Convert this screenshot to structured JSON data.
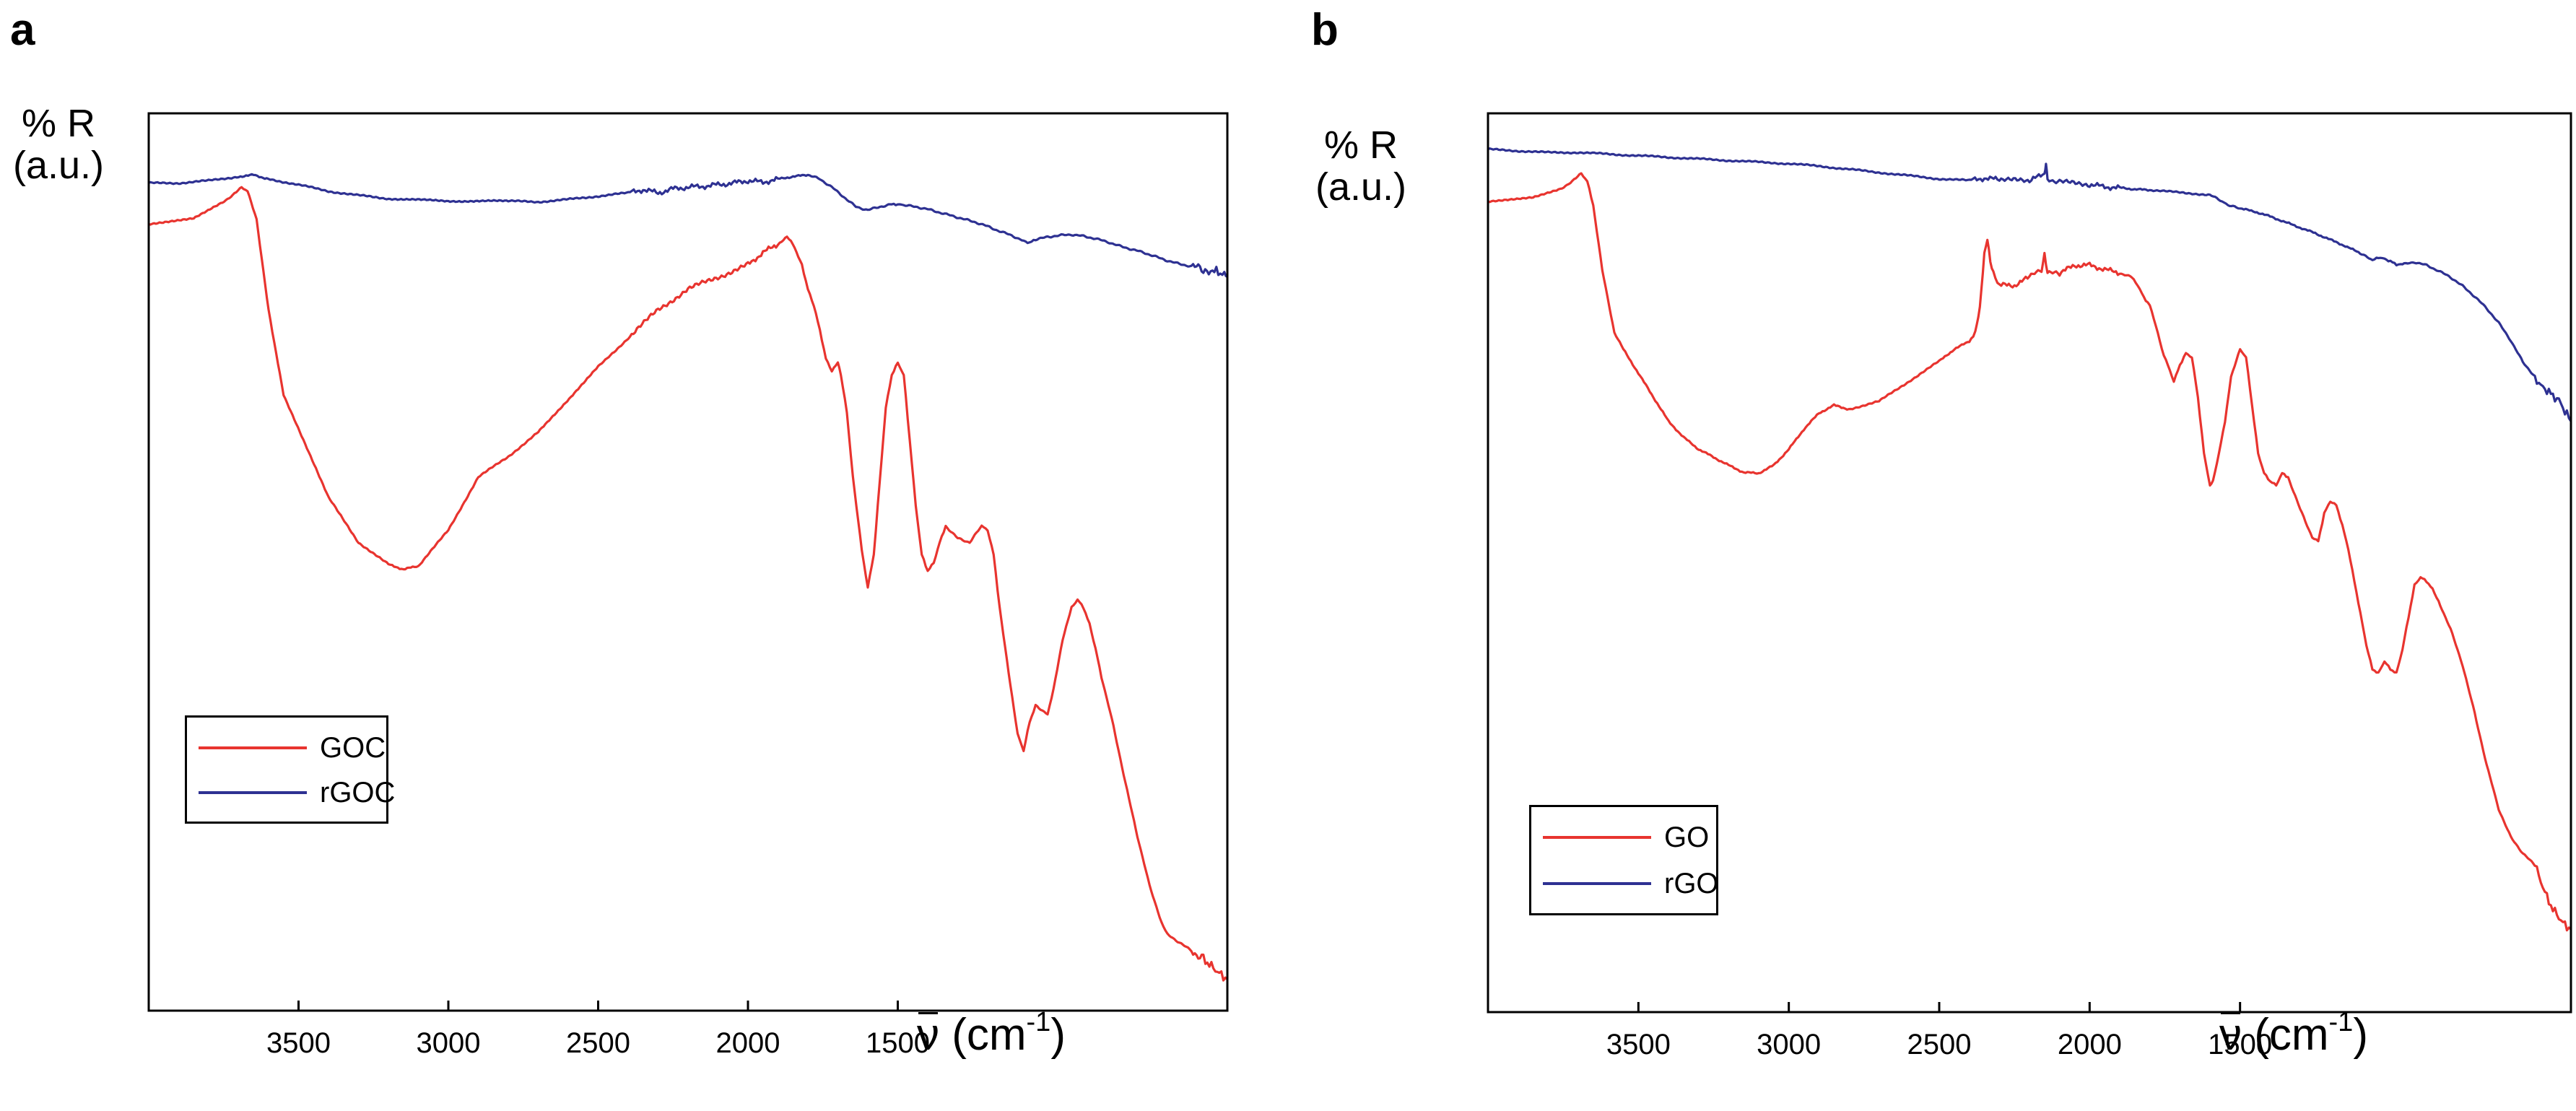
{
  "panels": [
    {
      "letter": "a",
      "ylabel_line1": "% R",
      "ylabel_line2": "(a.u.)",
      "xlabel_symbol": "ν",
      "xlabel_unit_open": " (cm",
      "xlabel_exp": "-1",
      "xlabel_close": ")",
      "legend": [
        {
          "label": "GOC",
          "color": "#e8342f"
        },
        {
          "label": "rGOC",
          "color": "#2e3192"
        }
      ]
    },
    {
      "letter": "b",
      "ylabel_line1": "% R",
      "ylabel_line2": "(a.u.)",
      "xlabel_symbol": "ν",
      "xlabel_unit_open": " (cm",
      "xlabel_exp": "-1",
      "xlabel_close": ")",
      "legend": [
        {
          "label": "GO",
          "color": "#e8342f"
        },
        {
          "label": "rGO",
          "color": "#2e3192"
        }
      ]
    }
  ],
  "chart_data": [
    {
      "type": "line",
      "title": "a",
      "xlabel": "ν (cm-1)",
      "ylabel": "% R (a.u.)",
      "xlim": [
        4000,
        400
      ],
      "ylim": [
        0,
        100
      ],
      "xticks": [
        3500,
        3000,
        2500,
        2000,
        1500
      ],
      "series": [
        {
          "name": "GOC",
          "color": "#e8342f",
          "x": [
            4000,
            3850,
            3760,
            3720,
            3690,
            3670,
            3640,
            3600,
            3550,
            3400,
            3300,
            3200,
            3150,
            3100,
            3000,
            2900,
            2800,
            2700,
            2500,
            2400,
            2300,
            2200,
            2100,
            2000,
            1950,
            1900,
            1870,
            1850,
            1820,
            1800,
            1780,
            1760,
            1740,
            1720,
            1700,
            1690,
            1670,
            1650,
            1620,
            1600,
            1580,
            1560,
            1540,
            1520,
            1500,
            1480,
            1460,
            1440,
            1420,
            1400,
            1380,
            1360,
            1340,
            1300,
            1260,
            1220,
            1200,
            1180,
            1160,
            1130,
            1100,
            1080,
            1060,
            1040,
            1000,
            980,
            950,
            920,
            900,
            880,
            860,
            840,
            820,
            780,
            740,
            700,
            660,
            620,
            600,
            560,
            520,
            480,
            460,
            440,
            420,
            400
          ],
          "y": [
            92.5,
            93.2,
            95.0,
            96.0,
            97.0,
            96.5,
            93.0,
            82.0,
            71.5,
            59.0,
            53.5,
            50.8,
            50.2,
            50.6,
            55.0,
            61.5,
            64.0,
            67.0,
            75.0,
            78.5,
            82.0,
            84.5,
            86.0,
            87.5,
            89.0,
            90.0,
            91.0,
            90.0,
            87.5,
            84.5,
            82.5,
            79.5,
            76.0,
            74.5,
            75.5,
            74.0,
            69.5,
            61.5,
            52.5,
            48.0,
            52.0,
            61.0,
            70.0,
            74.0,
            75.5,
            74.0,
            66.0,
            58.0,
            52.0,
            50.0,
            51.0,
            53.5,
            55.5,
            54.0,
            53.5,
            55.5,
            55.0,
            52.0,
            45.5,
            37.5,
            30.0,
            28.0,
            31.5,
            33.5,
            32.5,
            35.5,
            41.5,
            45.5,
            46.5,
            45.5,
            43.5,
            40.5,
            37.0,
            31.0,
            24.0,
            17.5,
            11.5,
            7.0,
            5.5,
            4.5,
            3.5,
            2.5,
            1.8,
            1.2,
            0.5,
            0.0
          ]
        },
        {
          "name": "rGOC",
          "color": "#2e3192",
          "x": [
            4000,
            3900,
            3800,
            3700,
            3650,
            3600,
            3500,
            3400,
            3300,
            3200,
            3000,
            2800,
            2700,
            2600,
            2500,
            2400,
            2350,
            2300,
            2250,
            2200,
            2150,
            2100,
            2050,
            2000,
            1950,
            1900,
            1850,
            1800,
            1760,
            1720,
            1680,
            1640,
            1600,
            1560,
            1520,
            1500,
            1480,
            1440,
            1400,
            1360,
            1320,
            1280,
            1240,
            1200,
            1160,
            1120,
            1080,
            1060,
            1040,
            1000,
            960,
            920,
            880,
            840,
            800,
            760,
            720,
            680,
            640,
            600,
            560,
            520,
            480,
            450,
            430,
            410,
            400
          ],
          "y": [
            97.5,
            97.5,
            97.8,
            98.3,
            98.5,
            98.0,
            97.3,
            96.5,
            96.0,
            95.6,
            95.3,
            95.3,
            95.2,
            95.5,
            95.9,
            96.3,
            96.7,
            96.3,
            96.8,
            97.0,
            97.1,
            97.3,
            97.5,
            97.8,
            97.6,
            98.0,
            98.3,
            98.5,
            98.0,
            97.0,
            95.8,
            94.6,
            94.2,
            94.6,
            94.9,
            94.9,
            94.8,
            94.6,
            94.3,
            93.9,
            93.5,
            93.1,
            92.7,
            92.2,
            91.6,
            91.1,
            90.4,
            90.2,
            90.6,
            90.9,
            91.1,
            91.2,
            91.0,
            90.7,
            90.3,
            89.8,
            89.4,
            89.0,
            88.5,
            88.0,
            87.6,
            87.3,
            87.0,
            86.8,
            86.6,
            86.3,
            86.0
          ]
        }
      ],
      "legend_position": "bottom-left"
    },
    {
      "type": "line",
      "title": "b",
      "xlabel": "ν (cm-1)",
      "ylabel": "% R (a.u.)",
      "xlim": [
        4000,
        400
      ],
      "ylim": [
        0,
        100
      ],
      "xticks": [
        3500,
        3000,
        2500,
        2000,
        1500
      ],
      "series": [
        {
          "name": "GO",
          "color": "#e8342f",
          "x": [
            4000,
            3850,
            3760,
            3720,
            3690,
            3670,
            3650,
            3620,
            3580,
            3550,
            3500,
            3450,
            3400,
            3350,
            3300,
            3250,
            3200,
            3150,
            3100,
            3050,
            3000,
            2950,
            2900,
            2850,
            2800,
            2700,
            2600,
            2500,
            2450,
            2400,
            2380,
            2365,
            2350,
            2340,
            2330,
            2320,
            2300,
            2250,
            2200,
            2160,
            2150,
            2140,
            2100,
            2050,
            2000,
            1950,
            1900,
            1860,
            1840,
            1820,
            1800,
            1780,
            1760,
            1740,
            1720,
            1700,
            1680,
            1660,
            1640,
            1620,
            1600,
            1590,
            1570,
            1550,
            1530,
            1500,
            1480,
            1460,
            1440,
            1420,
            1400,
            1380,
            1360,
            1340,
            1300,
            1260,
            1240,
            1220,
            1200,
            1180,
            1160,
            1140,
            1120,
            1100,
            1080,
            1060,
            1040,
            1020,
            1000,
            980,
            960,
            940,
            920,
            900,
            880,
            860,
            840,
            800,
            760,
            720,
            680,
            640,
            600,
            560,
            520,
            500,
            480,
            460,
            440,
            420,
            400
          ],
          "y": [
            93.5,
            94.0,
            95.0,
            96.0,
            97.0,
            96.0,
            93.0,
            85.0,
            77.0,
            75.0,
            72.0,
            69.0,
            66.0,
            64.0,
            62.5,
            61.5,
            60.5,
            59.6,
            59.5,
            60.5,
            62.5,
            65.0,
            67.0,
            68.0,
            67.5,
            68.5,
            71.0,
            73.5,
            75.0,
            76.0,
            77.0,
            80.0,
            87.0,
            89.0,
            86.0,
            84.5,
            83.0,
            83.0,
            84.0,
            85.0,
            87.0,
            84.5,
            84.5,
            85.5,
            85.5,
            85.0,
            84.5,
            84.0,
            83.0,
            81.5,
            80.5,
            78.0,
            75.0,
            73.0,
            71.0,
            73.0,
            74.5,
            74.0,
            69.0,
            62.0,
            58.0,
            58.5,
            62.0,
            66.0,
            71.5,
            75.0,
            74.0,
            68.0,
            62.0,
            59.5,
            58.5,
            58.0,
            59.5,
            59.0,
            55.0,
            51.5,
            51.0,
            54.5,
            56.0,
            55.5,
            53.0,
            50.0,
            46.0,
            42.0,
            38.0,
            35.0,
            34.5,
            36.0,
            35.0,
            34.5,
            37.5,
            41.5,
            45.5,
            46.5,
            46.0,
            45.0,
            43.5,
            40.0,
            35.5,
            29.5,
            23.0,
            17.5,
            14.0,
            12.0,
            10.5,
            8.5,
            6.5,
            5.0,
            4.0,
            3.0,
            2.5
          ]
        },
        {
          "name": "rGO",
          "color": "#2e3192",
          "x": [
            4000,
            3900,
            3800,
            3700,
            3600,
            3500,
            3400,
            3300,
            3200,
            3100,
            3000,
            2900,
            2800,
            2700,
            2600,
            2500,
            2400,
            2350,
            2300,
            2200,
            2150,
            2145,
            2140,
            2100,
            2000,
            1950,
            1900,
            1850,
            1800,
            1700,
            1600,
            1560,
            1540,
            1500,
            1450,
            1400,
            1350,
            1300,
            1250,
            1200,
            1150,
            1100,
            1060,
            1040,
            1020,
            1000,
            980,
            960,
            920,
            880,
            840,
            800,
            760,
            720,
            680,
            640,
            600,
            560,
            520,
            500,
            480,
            460,
            440,
            420,
            400
          ],
          "y": [
            100.0,
            99.8,
            99.6,
            99.6,
            99.4,
            99.2,
            99.0,
            98.8,
            98.6,
            98.4,
            98.2,
            97.9,
            97.5,
            97.1,
            96.7,
            96.3,
            96.1,
            96.4,
            96.2,
            96.0,
            97.0,
            98.0,
            96.3,
            95.9,
            95.6,
            95.3,
            95.2,
            95.0,
            94.9,
            94.6,
            94.3,
            93.5,
            93.0,
            92.6,
            92.2,
            91.6,
            90.9,
            90.2,
            89.5,
            88.7,
            87.9,
            87.0,
            86.1,
            86.5,
            86.3,
            86.0,
            85.6,
            85.6,
            85.9,
            85.5,
            84.8,
            84.0,
            82.9,
            81.6,
            80.1,
            78.3,
            76.1,
            73.4,
            71.6,
            70.4,
            69.9,
            69.2,
            68.6,
            67.3,
            66.0
          ]
        }
      ],
      "legend_position": "bottom-left"
    }
  ]
}
